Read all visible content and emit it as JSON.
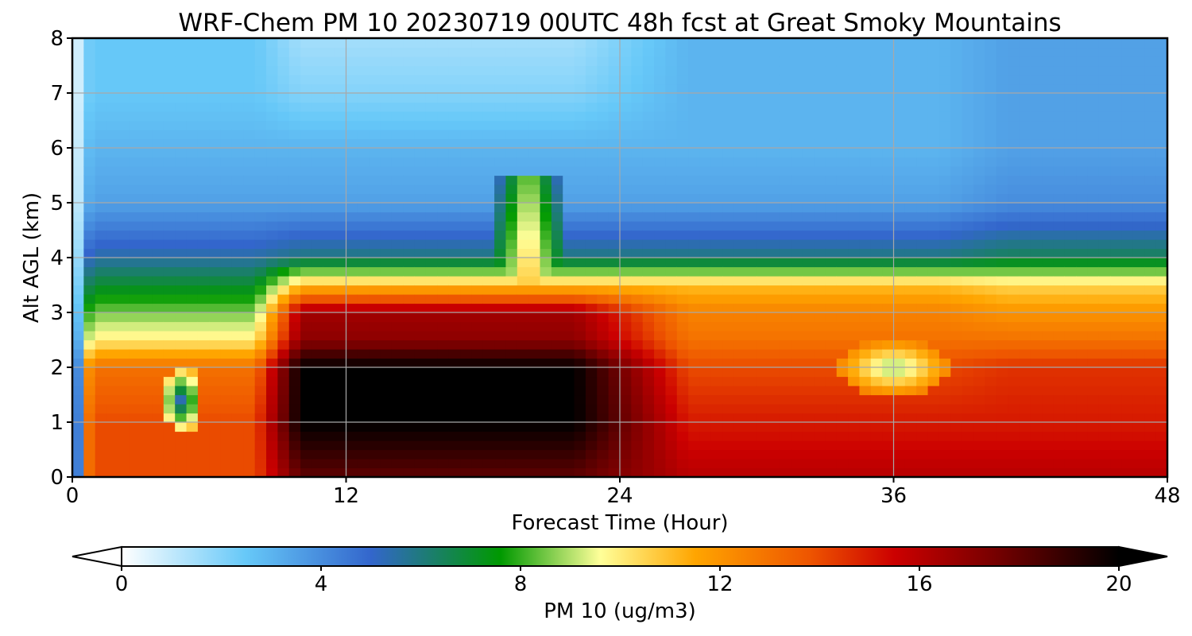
{
  "chart_data": {
    "type": "heatmap",
    "title": "WRF-Chem PM 10  20230719 00UTC 48h fcst at Great Smoky Mountains",
    "xlabel": "Forecast Time (Hour)",
    "ylabel": "Alt AGL (km)",
    "xlim": [
      0,
      48
    ],
    "ylim": [
      0,
      8
    ],
    "xticks": [
      0,
      12,
      24,
      36,
      48
    ],
    "yticks": [
      0,
      1,
      2,
      3,
      4,
      5,
      6,
      7,
      8
    ],
    "grid": true,
    "colorbar": {
      "label": "PM 10  (ug/m3)",
      "min": 0,
      "max": 20,
      "ticks": [
        0,
        4,
        8,
        12,
        16,
        20
      ],
      "extend": "both",
      "stops": [
        {
          "v": 0,
          "c": "#ffffff"
        },
        {
          "v": 2.5,
          "c": "#66c8f8"
        },
        {
          "v": 5,
          "c": "#3366cc"
        },
        {
          "v": 7.6,
          "c": "#009900"
        },
        {
          "v": 9.6,
          "c": "#ffff99"
        },
        {
          "v": 11.5,
          "c": "#ffa500"
        },
        {
          "v": 13.8,
          "c": "#ee5500"
        },
        {
          "v": 15.5,
          "c": "#cc0000"
        },
        {
          "v": 17.5,
          "c": "#770000"
        },
        {
          "v": 20,
          "c": "#000000"
        }
      ]
    },
    "x": [
      0,
      0.5,
      1,
      2,
      3,
      4,
      5,
      6,
      7,
      8,
      9,
      10,
      11,
      12,
      13,
      14,
      15,
      16,
      17,
      18,
      19,
      20,
      21,
      22,
      23,
      24,
      25,
      26,
      27,
      28,
      29,
      30,
      31,
      32,
      33,
      34,
      35,
      36,
      37,
      38,
      39,
      40,
      41,
      42,
      43,
      44,
      45,
      46,
      47,
      48
    ],
    "y": [
      0,
      0.5,
      1,
      1.5,
      2,
      2.5,
      3,
      3.5,
      4,
      4.5,
      5,
      5.5,
      6,
      6.5,
      7,
      7.5,
      8
    ],
    "series": [
      {
        "name": "PM 10",
        "profile_levels": [
          0,
          1,
          2,
          2.5,
          3,
          3.5,
          4,
          5,
          6,
          7,
          8
        ],
        "profiles": {
          "startup": [
            0,
            0,
            0,
            0,
            0,
            0,
            0,
            0,
            0,
            0,
            0
          ],
          "early": [
            14,
            14,
            13,
            10,
            8.5,
            7,
            5.5,
            3.5,
            3,
            2.5,
            2.5
          ],
          "black": [
            18,
            20,
            20,
            17,
            16.5,
            11,
            6,
            3.5,
            3,
            2,
            1.5
          ],
          "mid": [
            16,
            15,
            14,
            13,
            12.5,
            11,
            6,
            3.5,
            3,
            3,
            3
          ],
          "late": [
            16,
            15,
            14.5,
            13,
            12,
            10.5,
            6.5,
            4,
            3.5,
            3.5,
            3.5
          ],
          "end": [
            15,
            14,
            14,
            13,
            12,
            10,
            6.5,
            4,
            3.5,
            3,
            3
          ]
        }
      }
    ],
    "features": {
      "spike_hour": 20,
      "spike_top_km": 5.5,
      "pocket_hour": 4.8,
      "pocket_km": 1.4,
      "bright_spot_hour": 36,
      "bright_spot_km": 2.0
    }
  }
}
